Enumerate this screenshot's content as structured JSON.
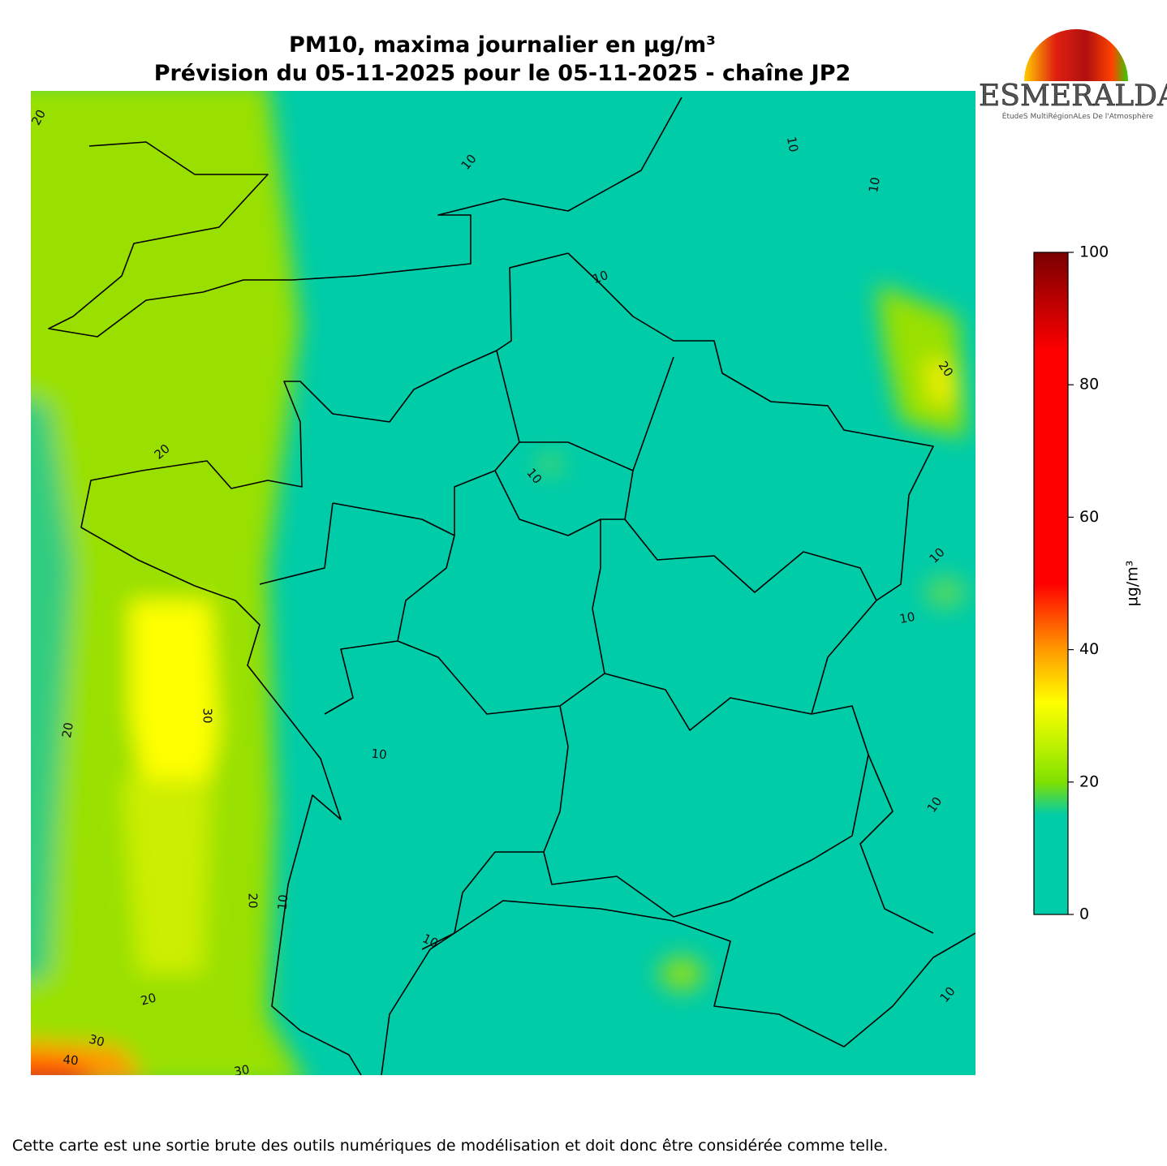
{
  "title": [
    "PM10, maxima journalier en µg/m³",
    "Prévision du 05-11-2025 pour le 05-11-2025 - chaîne JP2"
  ],
  "logo": {
    "name": "ESMERALDA",
    "tagline": "ÉtudeS MultiRégionALes De l'Atmosphère"
  },
  "colorbar": {
    "label": "µg/m³",
    "lim": [
      0,
      100
    ],
    "ticks": [
      0,
      20,
      40,
      60,
      80,
      100
    ],
    "colormap": [
      {
        "value": 0,
        "color": "#00cca8"
      },
      {
        "value": 15,
        "color": "#00cca8"
      },
      {
        "value": 20,
        "color": "#7fe000"
      },
      {
        "value": 25,
        "color": "#b8f000"
      },
      {
        "value": 32,
        "color": "#ffff00"
      },
      {
        "value": 40,
        "color": "#ff9900"
      },
      {
        "value": 50,
        "color": "#ff0000"
      },
      {
        "value": 85,
        "color": "#ff0000"
      },
      {
        "value": 100,
        "color": "#7a0000"
      }
    ]
  },
  "contour_labels": [
    "20",
    "10",
    "10",
    "10",
    "10",
    "20",
    "20",
    "10",
    "10",
    "10",
    "20",
    "30",
    "10",
    "10",
    "20",
    "10",
    "10",
    "10",
    "20",
    "30",
    "40",
    "30"
  ],
  "footnote": "Cette carte est une sortie brute des outils numériques de modélisation et doit donc être considérée comme telle."
}
